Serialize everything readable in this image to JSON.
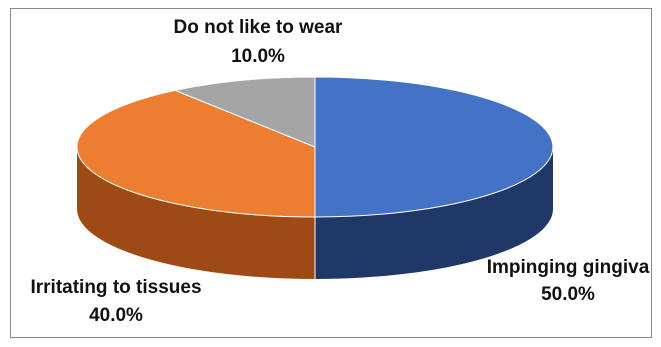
{
  "chart_data": {
    "type": "pie",
    "title": "",
    "slices": [
      {
        "label": "Impinging gingiva",
        "value": 50.0,
        "value_label": "50.0%",
        "color": "#4472C4",
        "side_color": "#1F3868"
      },
      {
        "label": "Irritating to tissues",
        "value": 40.0,
        "value_label": "40.0%",
        "color": "#ED7D31",
        "side_color": "#9E4A14"
      },
      {
        "label": "Do not like to wear",
        "value": 10.0,
        "value_label": "10.0%",
        "color": "#A5A5A5",
        "side_color": "#6E6E6E"
      }
    ],
    "style": "3d-pie",
    "legend": "none"
  }
}
